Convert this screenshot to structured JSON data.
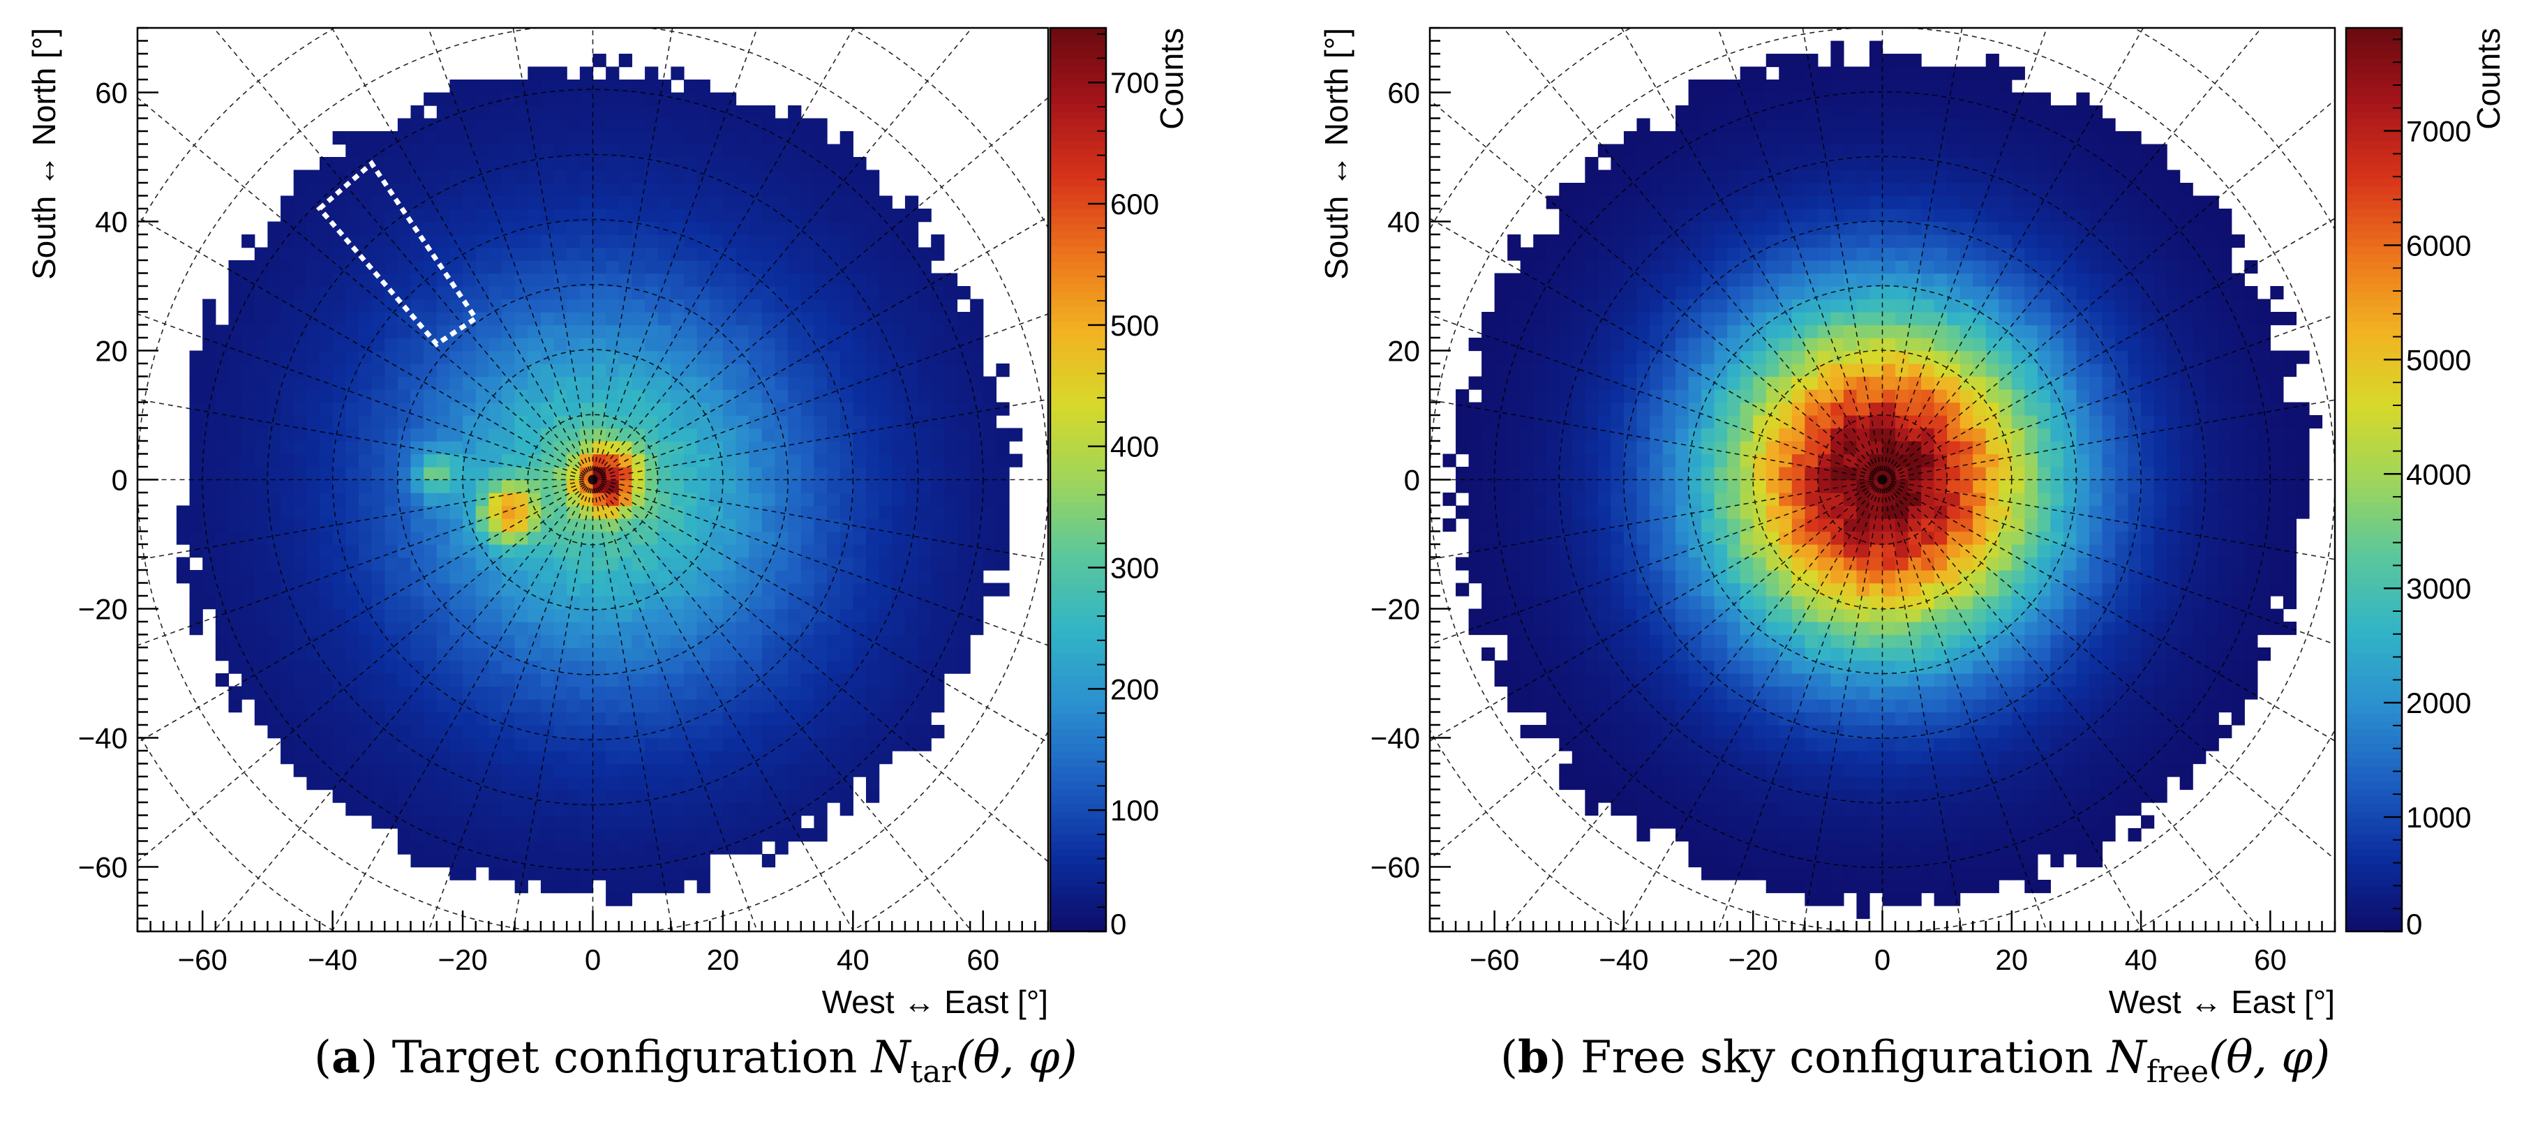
{
  "chart_data": [
    {
      "type": "heatmap",
      "panel": "a",
      "caption_label": "a",
      "caption_text": "Target configuration",
      "caption_symbol": "N",
      "caption_subscript": "tar",
      "caption_args": "(θ, φ)",
      "xlabel": "West ↔ East [°]",
      "ylabel": "South ↔ North [°]",
      "xlim": [
        -70,
        70
      ],
      "ylim": [
        -70,
        70
      ],
      "xticks": [
        "−60",
        "−40",
        "−20",
        "0",
        "20",
        "40",
        "60"
      ],
      "yticks": [
        "−60",
        "−40",
        "−20",
        "0",
        "20",
        "40",
        "60"
      ],
      "colorbar_label": "Counts",
      "zlim": [
        0,
        745
      ],
      "zticks": [
        "0",
        "100",
        "200",
        "300",
        "400",
        "500",
        "600",
        "700"
      ],
      "zmax": 745,
      "zero_radius_deg": 64,
      "grid_zenith_rings_deg": [
        10,
        20,
        30,
        40,
        50,
        60,
        70,
        80
      ],
      "grid_azimuth_step_deg": 10,
      "hotspots": [
        {
          "name": "zenith-peak",
          "x": 2,
          "y": 0,
          "sigma": 3.5,
          "amp": 420
        },
        {
          "name": "target-feature-a",
          "x": -13,
          "y": -5,
          "sigma": 3,
          "amp": 300
        },
        {
          "name": "target-feature-b",
          "x": -24,
          "y": 1,
          "sigma": 2.5,
          "amp": 170
        }
      ],
      "annotation_region": {
        "name": "dashed-box",
        "corners": [
          [
            -42,
            42
          ],
          [
            -34,
            49
          ],
          [
            -18,
            25
          ],
          [
            -24,
            21
          ]
        ]
      }
    },
    {
      "type": "heatmap",
      "panel": "b",
      "caption_label": "b",
      "caption_text": "Free sky configuration",
      "caption_symbol": "N",
      "caption_subscript": "free",
      "caption_args": "(θ, φ)",
      "xlabel": "West ↔ East [°]",
      "ylabel": "South ↔ North [°]",
      "xlim": [
        -70,
        70
      ],
      "ylim": [
        -70,
        70
      ],
      "xticks": [
        "−60",
        "−40",
        "−20",
        "0",
        "20",
        "40",
        "60"
      ],
      "yticks": [
        "−60",
        "−40",
        "−20",
        "0",
        "20",
        "40",
        "60"
      ],
      "colorbar_label": "Counts",
      "zlim": [
        0,
        7900
      ],
      "zticks": [
        "0",
        "1000",
        "2000",
        "3000",
        "4000",
        "5000",
        "6000",
        "7000"
      ],
      "zmax": 7900,
      "zero_radius_deg": 66,
      "grid_zenith_rings_deg": [
        10,
        20,
        30,
        40,
        50,
        60,
        70,
        80
      ],
      "grid_azimuth_step_deg": 10,
      "hotspots": [],
      "annotation_region": null
    }
  ],
  "colors": {
    "palette": [
      "#0e0c6a",
      "#0b2e9e",
      "#1d5fc2",
      "#2b8fcf",
      "#32b4c6",
      "#5bc79b",
      "#9fd55a",
      "#d7d92a",
      "#f2b122",
      "#ec741c",
      "#d8341a",
      "#a6151a",
      "#6a0a10"
    ],
    "grid": "#000000",
    "annotation": "#ffffff"
  }
}
